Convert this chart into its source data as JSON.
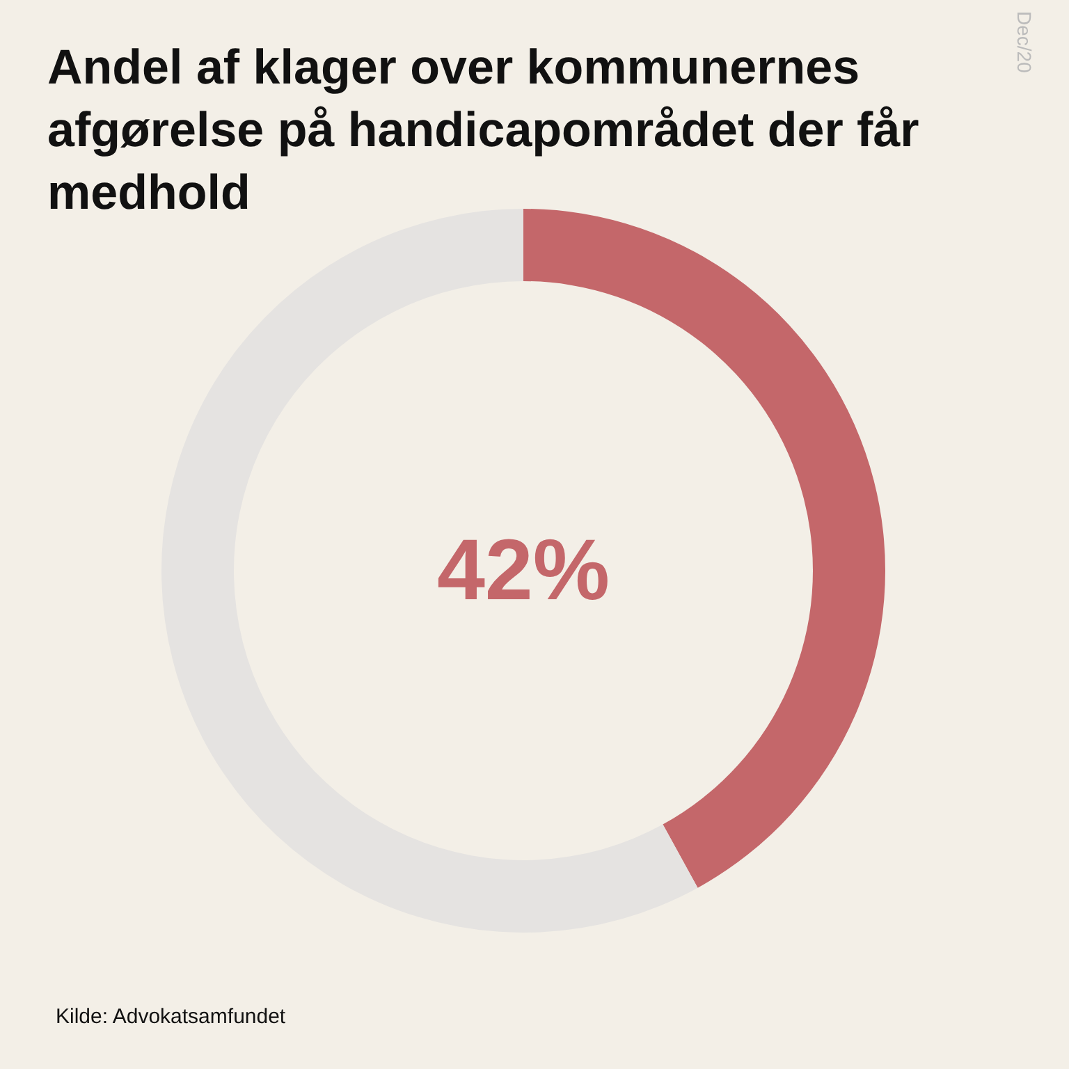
{
  "chart_data": {
    "type": "donut",
    "title": "Andel af klager over kommunernes afgørelse på handicapområdet der får medhold",
    "categories": [
      null,
      null
    ],
    "values": [
      42,
      58
    ],
    "colors": [
      "#c4676a",
      "#e5e3e1"
    ],
    "value_labels": [
      "42%",
      null
    ],
    "annotations": [
      "Dec/20",
      "Kilde: Advokatsamfundet"
    ]
  }
}
